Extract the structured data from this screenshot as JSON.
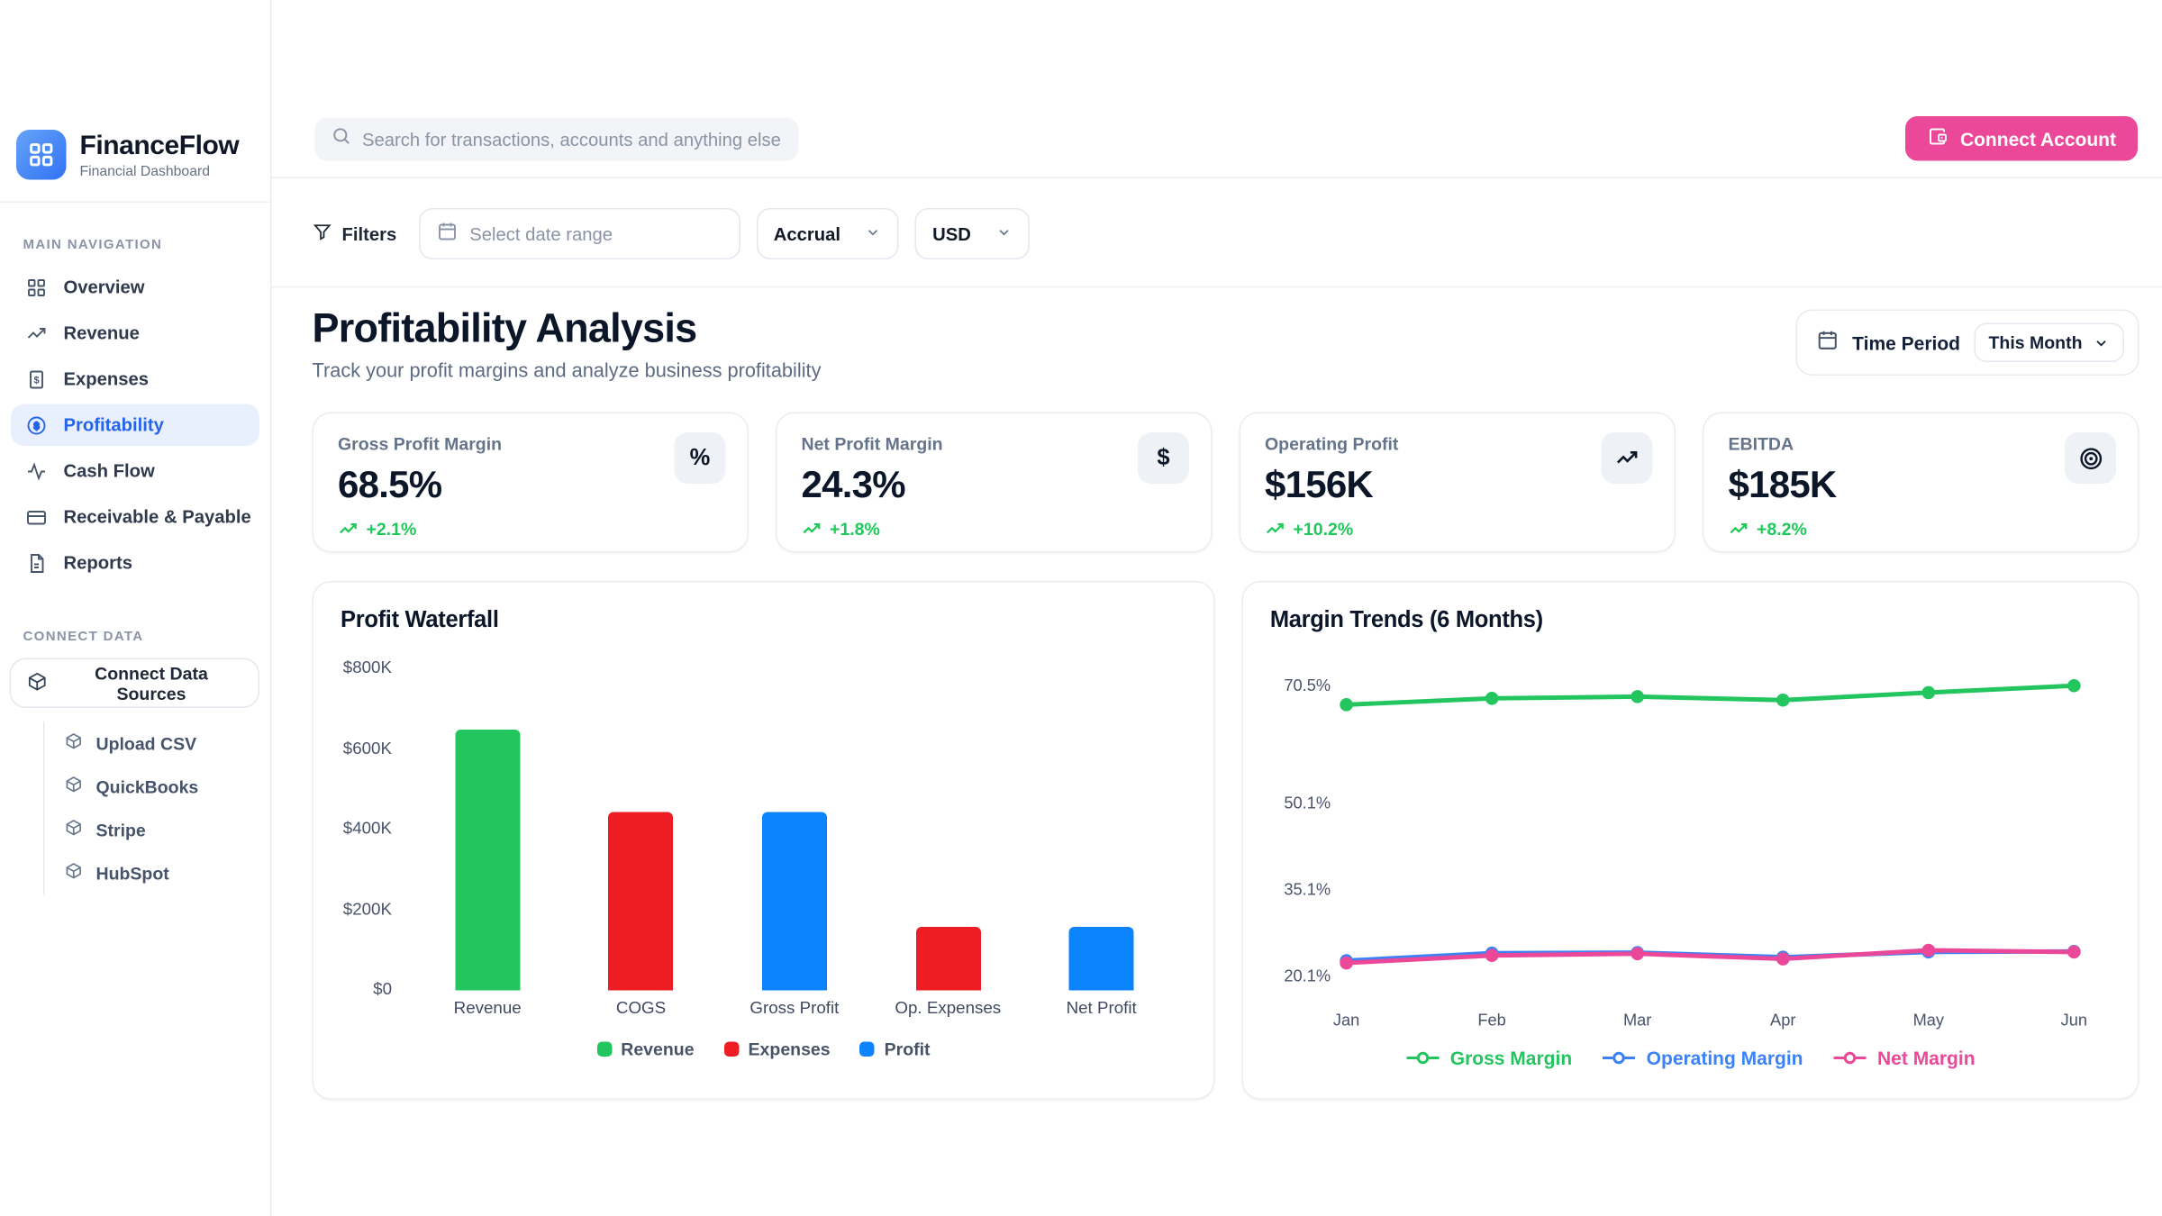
{
  "brand": {
    "name": "FinanceFlow",
    "tagline": "Financial Dashboard"
  },
  "topbar": {
    "search_placeholder": "Search for transactions, accounts and anything else financial",
    "connect_account_label": "Connect Account"
  },
  "filters": {
    "filters_label": "Filters",
    "date_range_placeholder": "Select date range",
    "accounting_basis": "Accrual",
    "currency": "USD"
  },
  "sidebar": {
    "main_nav_title": "MAIN NAVIGATION",
    "items": [
      {
        "label": "Overview",
        "active": false
      },
      {
        "label": "Revenue",
        "active": false
      },
      {
        "label": "Expenses",
        "active": false
      },
      {
        "label": "Profitability",
        "active": true
      },
      {
        "label": "Cash Flow",
        "active": false
      },
      {
        "label": "Receivable & Payable",
        "active": false
      },
      {
        "label": "Reports",
        "active": false
      }
    ],
    "connect_title": "CONNECT DATA",
    "connect_button": "Connect Data Sources",
    "connect_items": [
      {
        "label": "Upload CSV"
      },
      {
        "label": "QuickBooks"
      },
      {
        "label": "Stripe"
      },
      {
        "label": "HubSpot"
      }
    ]
  },
  "page": {
    "title": "Profitability Analysis",
    "subtitle": "Track your profit margins and analyze business profitability",
    "time_period_label": "Time Period",
    "time_period_value": "This Month"
  },
  "kpis": [
    {
      "label": "Gross Profit Margin",
      "value": "68.5%",
      "change": "+2.1%",
      "icon": "percent-icon"
    },
    {
      "label": "Net Profit Margin",
      "value": "24.3%",
      "change": "+1.8%",
      "icon": "dollar-icon"
    },
    {
      "label": "Operating Profit",
      "value": "$156K",
      "change": "+10.2%",
      "icon": "trend-up-icon"
    },
    {
      "label": "EBITDA",
      "value": "$185K",
      "change": "+8.2%",
      "icon": "target-icon"
    }
  ],
  "colors": {
    "accent_blue": "#2563eb",
    "pink": "#ec4899",
    "green": "#22c55e",
    "red": "#ee1d23",
    "bar_blue": "#0b84fe",
    "line_blue": "#3b82f6"
  },
  "chart_data": [
    {
      "type": "bar",
      "title": "Profit Waterfall",
      "categories": [
        "Revenue",
        "COGS",
        "Gross Profit",
        "Op. Expenses",
        "Net Profit"
      ],
      "values": [
        650,
        445,
        445,
        158,
        158
      ],
      "unit": "$K",
      "bar_colors": [
        "#22c55e",
        "#ee1d23",
        "#0b84fe",
        "#ee1d23",
        "#0b84fe"
      ],
      "ylim": [
        0,
        800
      ],
      "yticks": [
        {
          "v": 800,
          "label": "$800K"
        },
        {
          "v": 600,
          "label": "$600K"
        },
        {
          "v": 400,
          "label": "$400K"
        },
        {
          "v": 200,
          "label": "$200K"
        },
        {
          "v": 0,
          "label": "$0"
        }
      ],
      "legend": [
        {
          "label": "Revenue",
          "color": "#22c55e"
        },
        {
          "label": "Expenses",
          "color": "#ee1d23"
        },
        {
          "label": "Profit",
          "color": "#0b84fe"
        }
      ],
      "grid": false,
      "legend_position": "bottom"
    },
    {
      "type": "line",
      "title": "Margin Trends (6 Months)",
      "x": [
        "Jan",
        "Feb",
        "Mar",
        "Apr",
        "May",
        "Jun"
      ],
      "ylim": [
        17.5,
        74
      ],
      "yticks": [
        {
          "v": 70.5,
          "label": "70.5%"
        },
        {
          "v": 50.1,
          "label": "50.1%"
        },
        {
          "v": 35.1,
          "label": "35.1%"
        },
        {
          "v": 20.1,
          "label": "20.1%"
        }
      ],
      "series": [
        {
          "name": "Gross Margin",
          "color": "#22c55e",
          "values": [
            67.2,
            68.3,
            68.6,
            68.0,
            69.3,
            70.5
          ]
        },
        {
          "name": "Operating Margin",
          "color": "#3b82f6",
          "values": [
            22.8,
            24.1,
            24.2,
            23.4,
            24.3,
            24.4
          ]
        },
        {
          "name": "Net Margin",
          "color": "#ec4899",
          "values": [
            22.4,
            23.7,
            24.0,
            23.1,
            24.6,
            24.3
          ]
        }
      ],
      "grid": false,
      "legend_position": "bottom"
    }
  ]
}
